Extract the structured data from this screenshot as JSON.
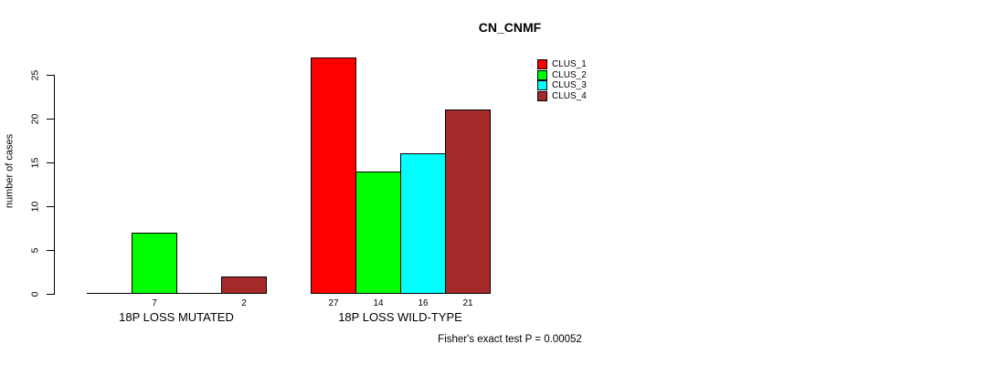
{
  "page": {
    "background": "#ffffff"
  },
  "chart_data": {
    "type": "bar",
    "title": "CN_CNMF",
    "ylabel": "number of cases",
    "xlabel": "",
    "categories": [
      "18P LOSS MUTATED",
      "18P LOSS WILD-TYPE"
    ],
    "series": [
      {
        "name": "CLUS_1",
        "color": "#ff0000",
        "values": [
          0,
          27
        ]
      },
      {
        "name": "CLUS_2",
        "color": "#00ff00",
        "values": [
          7,
          14
        ]
      },
      {
        "name": "CLUS_3",
        "color": "#00ffff",
        "values": [
          0,
          16
        ]
      },
      {
        "name": "CLUS_4",
        "color": "#a52a2a",
        "values": [
          2,
          21
        ]
      }
    ],
    "bar_value_labels_shown": [
      "7",
      "2",
      "27",
      "14",
      "16",
      "21"
    ],
    "show_zero_value_labels": false,
    "yticks": [
      0,
      5,
      10,
      15,
      20,
      25
    ],
    "ylim": [
      0,
      27
    ],
    "grid": false,
    "legend": {
      "position": "top-right",
      "entries": [
        "CLUS_1",
        "CLUS_2",
        "CLUS_3",
        "CLUS_4"
      ]
    },
    "annotation": "Fisher's exact test P = 0.00052"
  }
}
